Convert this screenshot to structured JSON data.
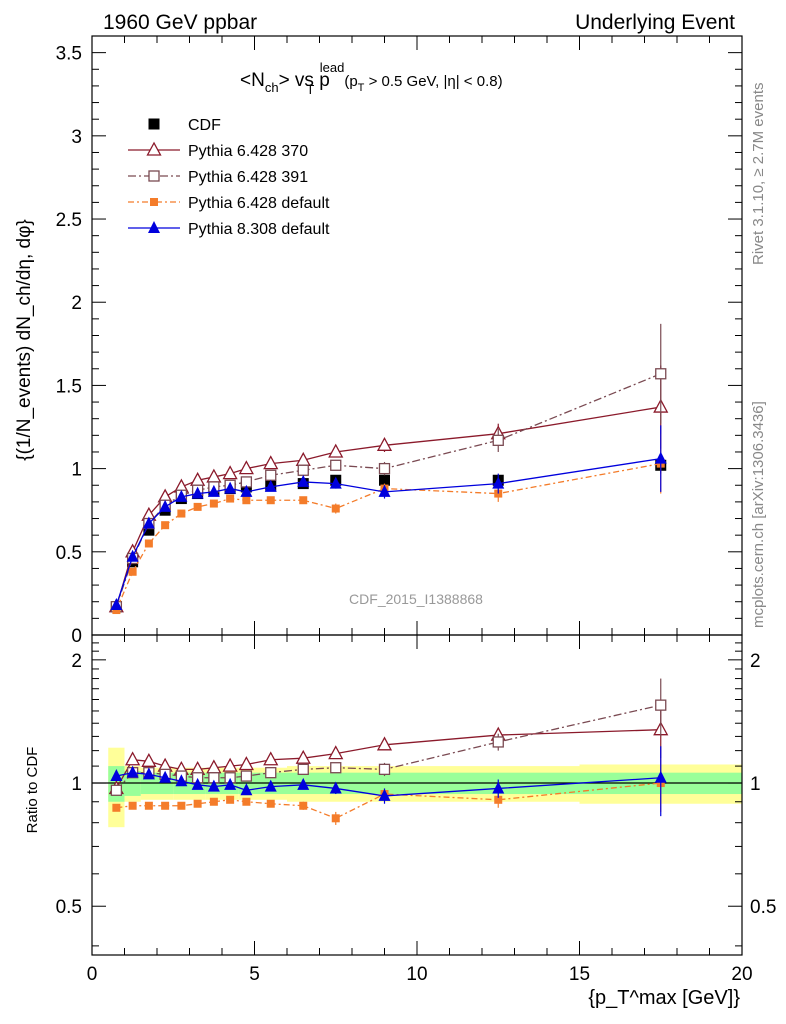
{
  "header": {
    "left": "1960 GeV ppbar",
    "right": "Underlying Event"
  },
  "side_labels": {
    "top": "Rivet 3.1.10, ≥ 2.7M events",
    "bottom": "mcplots.cern.ch [arXiv:1306.3436]"
  },
  "watermark": "CDF_2015_I1388868",
  "colors": {
    "cdf": "#000000",
    "p370": "#8b1a2b",
    "p391": "#7a4a52",
    "p6def": "#f47c2a",
    "p8def": "#0000dd",
    "band_inner": "#99ff99",
    "band_outer": "#ffff99"
  },
  "chart_data": [
    {
      "type": "scatter",
      "title_parts": {
        "main": "<N",
        "sub1": "ch",
        "mid": "> vs p",
        "sup": "lead",
        "sub2": "T",
        "cond_a": "(p",
        "cond_sub": "T",
        "cond_b": " > 0.5 GeV, |η| < 0.8)"
      },
      "ylabel": "{(1/N_events) dN_ch/dη, dφ}",
      "ylim": [
        0,
        3.6
      ],
      "yticks": [
        0,
        0.5,
        1,
        1.5,
        2,
        2.5,
        3,
        3.5
      ],
      "ytick_labels": [
        "0",
        "0.5",
        "1",
        "1.5",
        "2",
        "2.5",
        "3",
        "3.5"
      ],
      "xlim": [
        0,
        20
      ],
      "legend_position": "top-left",
      "x": [
        0.75,
        1.25,
        1.75,
        2.25,
        2.75,
        3.25,
        3.75,
        4.25,
        4.75,
        5.5,
        6.5,
        7.5,
        9.0,
        12.5,
        17.5
      ],
      "series": [
        {
          "name": "CDF",
          "marker": "filled-square",
          "values": [
            0.17,
            0.44,
            0.63,
            0.75,
            0.82,
            0.85,
            0.87,
            0.88,
            0.89,
            0.9,
            0.91,
            0.93,
            0.93,
            0.93,
            1.02
          ],
          "errors": [
            0.01,
            0.02,
            0.02,
            0.02,
            0.02,
            0.02,
            0.02,
            0.02,
            0.02,
            0.02,
            0.02,
            0.02,
            0.03,
            0.03,
            0.05
          ]
        },
        {
          "name": "Pythia 6.428 370",
          "marker": "open-triangle",
          "values": [
            0.17,
            0.5,
            0.72,
            0.83,
            0.89,
            0.93,
            0.95,
            0.97,
            1.0,
            1.03,
            1.05,
            1.1,
            1.14,
            1.21,
            1.37
          ],
          "errors": [
            0.01,
            0.01,
            0.01,
            0.01,
            0.01,
            0.01,
            0.01,
            0.01,
            0.02,
            0.02,
            0.02,
            0.03,
            0.04,
            0.06,
            0.25
          ]
        },
        {
          "name": "Pythia 6.428 391",
          "marker": "open-square",
          "values": [
            0.17,
            0.46,
            0.67,
            0.78,
            0.84,
            0.87,
            0.89,
            0.9,
            0.92,
            0.96,
            0.99,
            1.02,
            1.0,
            1.17,
            1.57
          ],
          "errors": [
            0.01,
            0.01,
            0.01,
            0.01,
            0.01,
            0.01,
            0.01,
            0.01,
            0.02,
            0.02,
            0.02,
            0.03,
            0.04,
            0.07,
            0.3
          ]
        },
        {
          "name": "Pythia 6.428 default",
          "marker": "filled-square-small",
          "values": [
            0.15,
            0.38,
            0.55,
            0.66,
            0.73,
            0.77,
            0.79,
            0.82,
            0.81,
            0.81,
            0.81,
            0.76,
            0.88,
            0.85,
            1.03
          ],
          "errors": [
            0.01,
            0.01,
            0.01,
            0.01,
            0.01,
            0.01,
            0.01,
            0.01,
            0.02,
            0.02,
            0.02,
            0.03,
            0.03,
            0.05,
            0.18
          ]
        },
        {
          "name": "Pythia 8.308 default",
          "marker": "filled-triangle",
          "values": [
            0.18,
            0.47,
            0.67,
            0.77,
            0.83,
            0.85,
            0.86,
            0.88,
            0.86,
            0.89,
            0.92,
            0.91,
            0.86,
            0.91,
            1.06
          ],
          "errors": [
            0.01,
            0.01,
            0.01,
            0.01,
            0.01,
            0.01,
            0.01,
            0.01,
            0.02,
            0.02,
            0.02,
            0.03,
            0.04,
            0.06,
            0.2
          ]
        }
      ]
    },
    {
      "type": "scatter",
      "ylabel": "Ratio to CDF",
      "xlabel": "{p_T^max [GeV]}",
      "ylim": [
        0.38,
        2.3
      ],
      "yscale": "log",
      "yticks": [
        0.5,
        1,
        2
      ],
      "ytick_labels": [
        "0.5",
        "1",
        "2"
      ],
      "xlim": [
        0,
        20
      ],
      "xticks": [
        0,
        5,
        10,
        15,
        20
      ],
      "xtick_labels": [
        "0",
        "5",
        "10",
        "15",
        "20"
      ],
      "x": [
        0.75,
        1.25,
        1.75,
        2.25,
        2.75,
        3.25,
        3.75,
        4.25,
        4.75,
        5.5,
        6.5,
        7.5,
        9.0,
        12.5,
        17.5
      ],
      "band_edges": [
        0.5,
        1.0,
        1.5,
        2.0,
        2.5,
        3.0,
        3.5,
        4.0,
        4.5,
        5.0,
        6.0,
        7.0,
        8.0,
        10.0,
        15.0,
        20.0
      ],
      "band_inner": [
        0.1,
        0.07,
        0.06,
        0.06,
        0.06,
        0.06,
        0.06,
        0.06,
        0.06,
        0.06,
        0.06,
        0.06,
        0.06,
        0.06,
        0.06
      ],
      "band_outer": [
        0.22,
        0.1,
        0.09,
        0.09,
        0.09,
        0.09,
        0.09,
        0.09,
        0.09,
        0.09,
        0.1,
        0.1,
        0.1,
        0.1,
        0.11
      ],
      "series": [
        {
          "name": "Pythia 6.428 370",
          "values": [
            0.97,
            1.14,
            1.13,
            1.1,
            1.08,
            1.08,
            1.09,
            1.1,
            1.11,
            1.14,
            1.15,
            1.18,
            1.24,
            1.31,
            1.35
          ],
          "errors": [
            0.02,
            0.02,
            0.02,
            0.02,
            0.02,
            0.02,
            0.02,
            0.02,
            0.02,
            0.02,
            0.02,
            0.03,
            0.03,
            0.04,
            0.2
          ]
        },
        {
          "name": "Pythia 6.428 391",
          "values": [
            0.96,
            1.06,
            1.06,
            1.05,
            1.04,
            1.03,
            1.03,
            1.03,
            1.04,
            1.06,
            1.08,
            1.09,
            1.08,
            1.26,
            1.55
          ],
          "errors": [
            0.02,
            0.02,
            0.02,
            0.02,
            0.02,
            0.02,
            0.02,
            0.02,
            0.02,
            0.02,
            0.02,
            0.03,
            0.04,
            0.06,
            0.25
          ]
        },
        {
          "name": "Pythia 6.428 default",
          "values": [
            0.87,
            0.88,
            0.88,
            0.88,
            0.88,
            0.89,
            0.9,
            0.91,
            0.9,
            0.89,
            0.88,
            0.82,
            0.94,
            0.91,
            1.0
          ],
          "errors": [
            0.01,
            0.01,
            0.01,
            0.01,
            0.01,
            0.01,
            0.01,
            0.01,
            0.01,
            0.01,
            0.02,
            0.03,
            0.03,
            0.04,
            0.15
          ]
        },
        {
          "name": "Pythia 8.308 default",
          "values": [
            1.04,
            1.06,
            1.05,
            1.03,
            1.01,
            0.99,
            0.98,
            0.99,
            0.96,
            0.98,
            0.99,
            0.97,
            0.93,
            0.97,
            1.03
          ],
          "errors": [
            0.02,
            0.02,
            0.02,
            0.02,
            0.02,
            0.02,
            0.02,
            0.02,
            0.02,
            0.02,
            0.02,
            0.03,
            0.04,
            0.05,
            0.2
          ]
        }
      ]
    }
  ]
}
